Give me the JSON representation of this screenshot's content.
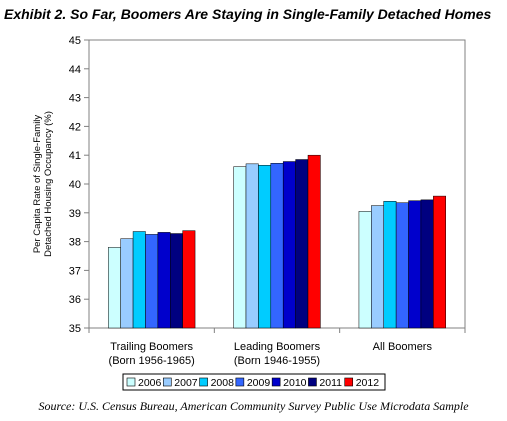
{
  "title": "Exhibit 2. So Far, Boomers Are Staying in Single-Family Detached Homes",
  "source": "Source: U.S. Census Bureau, American Community Survey Public Use Microdata Sample",
  "chart_data": {
    "type": "bar",
    "title": "Exhibit 2. So Far, Boomers Are Staying in Single-Family Detached Homes",
    "ylabel_lines": [
      "Per Capita Rate of Single-Family",
      "Detached Housing Occupancy (%)"
    ],
    "ylim": [
      35,
      45
    ],
    "yticks": [
      35,
      36,
      37,
      38,
      39,
      40,
      41,
      42,
      43,
      44,
      45
    ],
    "grid": false,
    "legend_position": "bottom",
    "categories": [
      {
        "lines": [
          "Trailing Boomers",
          "(Born 1956-1965)"
        ]
      },
      {
        "lines": [
          "Leading Boomers",
          "(Born 1946-1955)"
        ]
      },
      {
        "lines": [
          "All Boomers"
        ]
      }
    ],
    "series": [
      {
        "name": "2006",
        "color": "#ccffff",
        "values": [
          37.8,
          40.6,
          39.05
        ]
      },
      {
        "name": "2007",
        "color": "#99ccff",
        "values": [
          38.1,
          40.7,
          39.25
        ]
      },
      {
        "name": "2008",
        "color": "#00ccff",
        "values": [
          38.35,
          40.65,
          39.4
        ]
      },
      {
        "name": "2009",
        "color": "#3366ff",
        "values": [
          38.25,
          40.72,
          39.35
        ]
      },
      {
        "name": "2010",
        "color": "#0000cc",
        "values": [
          38.32,
          40.78,
          39.42
        ]
      },
      {
        "name": "2011",
        "color": "#000080",
        "values": [
          38.28,
          40.85,
          39.45
        ]
      },
      {
        "name": "2012",
        "color": "#ff0000",
        "values": [
          38.38,
          41.0,
          39.58
        ]
      }
    ]
  }
}
